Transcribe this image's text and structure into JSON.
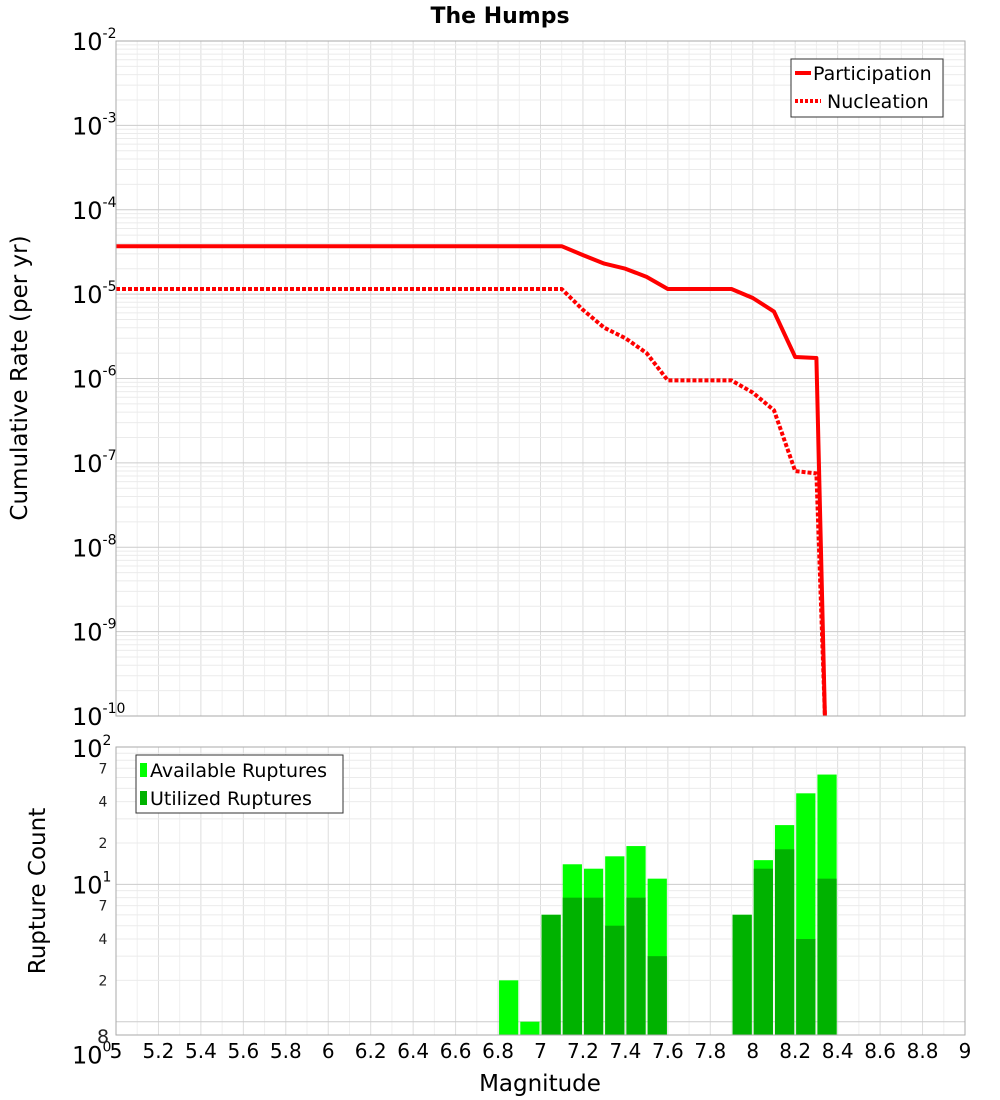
{
  "chart_data": [
    {
      "type": "line",
      "title": "The Humps",
      "xlabel": "",
      "ylabel": "Cumulative Rate (per yr)",
      "xlim": [
        5,
        9
      ],
      "ylim": [
        1e-10,
        0.01
      ],
      "yscale": "log",
      "grid": true,
      "legend_position": "top-right",
      "series": [
        {
          "name": "Participation",
          "color": "#ff0000",
          "style": "solid",
          "x": [
            5.0,
            7.1,
            7.2,
            7.3,
            7.4,
            7.5,
            7.6,
            7.9,
            8.0,
            8.1,
            8.2,
            8.3,
            8.34
          ],
          "y": [
            3.7e-05,
            3.7e-05,
            2.9e-05,
            2.3e-05,
            2e-05,
            1.6e-05,
            1.15e-05,
            1.15e-05,
            9e-06,
            6.2e-06,
            1.8e-06,
            1.75e-06,
            1e-10
          ]
        },
        {
          "name": "Nucleation",
          "color": "#ff0000",
          "style": "dotted",
          "x": [
            5.0,
            7.1,
            7.2,
            7.3,
            7.4,
            7.5,
            7.6,
            7.9,
            8.0,
            8.1,
            8.2,
            8.3,
            8.34
          ],
          "y": [
            1.15e-05,
            1.15e-05,
            6.5e-06,
            4e-06,
            3e-06,
            2e-06,
            9.5e-07,
            9.5e-07,
            6.8e-07,
            4.2e-07,
            8e-08,
            7.5e-08,
            1e-10
          ]
        }
      ],
      "y_tick_labels": [
        {
          "base": "10",
          "exp": "-2"
        },
        {
          "base": "10",
          "exp": "-3"
        },
        {
          "base": "10",
          "exp": "-4"
        },
        {
          "base": "10",
          "exp": "-5"
        },
        {
          "base": "10",
          "exp": "-6"
        },
        {
          "base": "10",
          "exp": "-7"
        },
        {
          "base": "10",
          "exp": "-8"
        },
        {
          "base": "10",
          "exp": "-9"
        },
        {
          "base": "10",
          "exp": "-10"
        }
      ]
    },
    {
      "type": "bar",
      "title": "",
      "xlabel": "Magnitude",
      "ylabel": "Rupture Count",
      "xlim": [
        5,
        9
      ],
      "ylim": [
        0.8,
        100
      ],
      "yscale": "log",
      "grid": true,
      "legend_position": "top-left",
      "bar_width": 0.1,
      "x": [
        6.85,
        6.95,
        7.05,
        7.15,
        7.25,
        7.35,
        7.45,
        7.55,
        7.95,
        8.05,
        8.15,
        8.25,
        8.35
      ],
      "series": [
        {
          "name": "Available Ruptures",
          "color": "#00ff00",
          "values": [
            2,
            1,
            6,
            14,
            13,
            16,
            19,
            11,
            6,
            15,
            27,
            46,
            63
          ]
        },
        {
          "name": "Utilized Ruptures",
          "color": "#00b200",
          "values": [
            0,
            0,
            6,
            8,
            8,
            5,
            8,
            3,
            6,
            13,
            18,
            4,
            11
          ]
        }
      ],
      "x_ticks": [
        "5",
        "5.2",
        "5.4",
        "5.6",
        "5.8",
        "6",
        "6.2",
        "6.4",
        "6.6",
        "6.8",
        "7",
        "7.2",
        "7.4",
        "7.6",
        "7.8",
        "8",
        "8.2",
        "8.4",
        "8.6",
        "8.8",
        "9"
      ],
      "y_major_labels": [
        {
          "base": "10",
          "exp": "2"
        },
        {
          "base": "10",
          "exp": "1"
        },
        {
          "base": "10",
          "exp": "0"
        }
      ],
      "y_minor_labels": [
        "7",
        "4",
        "2",
        "7",
        "4",
        "2",
        "8"
      ]
    }
  ]
}
